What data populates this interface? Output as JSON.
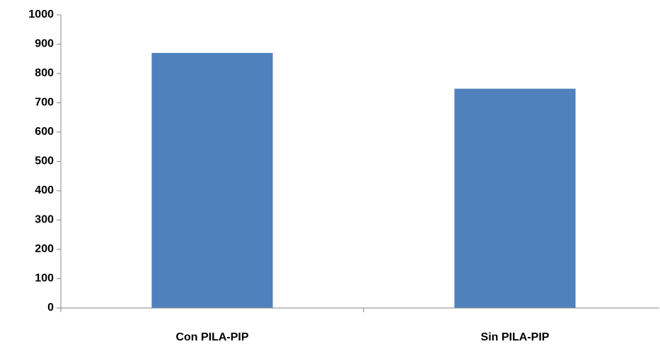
{
  "chart_data": {
    "type": "bar",
    "categories": [
      "Con PILA-PIP",
      "Sin PILA-PIP"
    ],
    "values": [
      870,
      748
    ],
    "color": "#4f81bd",
    "ylim": [
      0,
      1000
    ],
    "yticks": [
      0,
      100,
      200,
      300,
      400,
      500,
      600,
      700,
      800,
      900,
      1000
    ],
    "grid": false
  }
}
